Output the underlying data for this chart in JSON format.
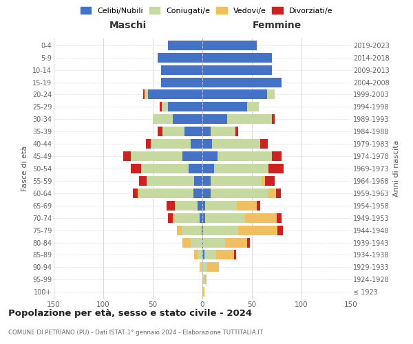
{
  "age_groups": [
    "100+",
    "95-99",
    "90-94",
    "85-89",
    "80-84",
    "75-79",
    "70-74",
    "65-69",
    "60-64",
    "55-59",
    "50-54",
    "45-49",
    "40-44",
    "35-39",
    "30-34",
    "25-29",
    "20-24",
    "15-19",
    "10-14",
    "5-9",
    "0-4"
  ],
  "birth_years": [
    "≤ 1923",
    "1924-1928",
    "1929-1933",
    "1934-1938",
    "1939-1943",
    "1944-1948",
    "1949-1953",
    "1954-1958",
    "1959-1963",
    "1964-1968",
    "1969-1973",
    "1974-1978",
    "1979-1983",
    "1984-1988",
    "1989-1993",
    "1994-1998",
    "1999-2003",
    "2004-2008",
    "2009-2013",
    "2014-2018",
    "2019-2023"
  ],
  "male": {
    "celibi": [
      0,
      0,
      0,
      0,
      0,
      1,
      3,
      5,
      9,
      8,
      14,
      20,
      12,
      18,
      30,
      35,
      55,
      42,
      42,
      45,
      35
    ],
    "coniugati": [
      0,
      0,
      2,
      5,
      12,
      20,
      25,
      22,
      55,
      48,
      48,
      52,
      40,
      22,
      20,
      6,
      3,
      0,
      0,
      0,
      0
    ],
    "vedovi": [
      0,
      0,
      1,
      3,
      8,
      5,
      2,
      1,
      1,
      0,
      0,
      0,
      0,
      0,
      0,
      0,
      0,
      0,
      0,
      0,
      0
    ],
    "divorziati": [
      0,
      0,
      0,
      0,
      0,
      0,
      5,
      8,
      5,
      8,
      10,
      8,
      5,
      5,
      0,
      2,
      2,
      0,
      0,
      0,
      0
    ]
  },
  "female": {
    "nubili": [
      0,
      0,
      0,
      2,
      1,
      1,
      3,
      3,
      8,
      8,
      12,
      15,
      10,
      8,
      25,
      45,
      65,
      80,
      70,
      70,
      55
    ],
    "coniugate": [
      0,
      2,
      5,
      12,
      22,
      35,
      40,
      32,
      58,
      52,
      55,
      55,
      48,
      25,
      45,
      12,
      8,
      0,
      0,
      0,
      0
    ],
    "vedove": [
      2,
      2,
      12,
      18,
      22,
      40,
      32,
      20,
      8,
      3,
      0,
      0,
      0,
      0,
      0,
      0,
      0,
      0,
      0,
      0,
      0
    ],
    "divorziate": [
      0,
      0,
      0,
      2,
      3,
      5,
      5,
      3,
      5,
      10,
      15,
      10,
      8,
      3,
      3,
      0,
      0,
      0,
      0,
      0,
      0
    ]
  },
  "colors": {
    "celibi": "#4472c4",
    "coniugati": "#c5d9a0",
    "vedovi": "#f0c060",
    "divorziati": "#cc2222"
  },
  "xlim": 150,
  "title": "Popolazione per età, sesso e stato civile - 2024",
  "subtitle": "COMUNE DI PETRIANO (PU) - Dati ISTAT 1° gennaio 2024 - Elaborazione TUTTITALIA.IT",
  "ylabel_left": "Fasce di età",
  "ylabel_right": "Anni di nascita",
  "label_maschi": "Maschi",
  "label_femmine": "Femmine",
  "legend_labels": [
    "Celibi/Nubili",
    "Coniugati/e",
    "Vedovi/e",
    "Divorziati/e"
  ]
}
